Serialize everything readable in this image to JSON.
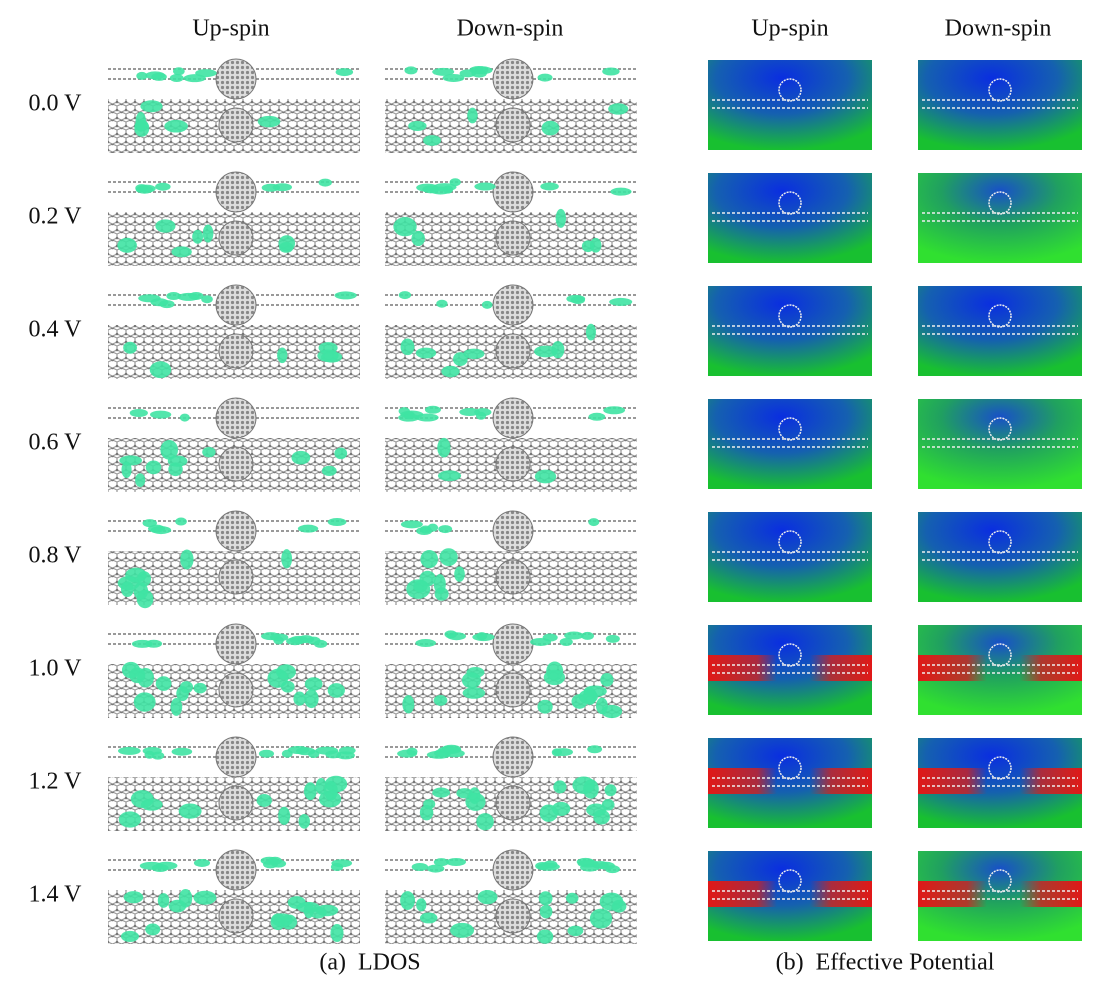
{
  "column_headers": [
    "Up-spin",
    "Down-spin",
    "Up-spin",
    "Down-spin"
  ],
  "row_labels": [
    "0.0 V",
    "0.2 V",
    "0.4 V",
    "0.6 V",
    "0.8 V",
    "1.0 V",
    "1.2 V",
    "1.4 V"
  ],
  "captions": [
    "(a)  LDOS",
    "(b)  Effective Potential"
  ]
}
